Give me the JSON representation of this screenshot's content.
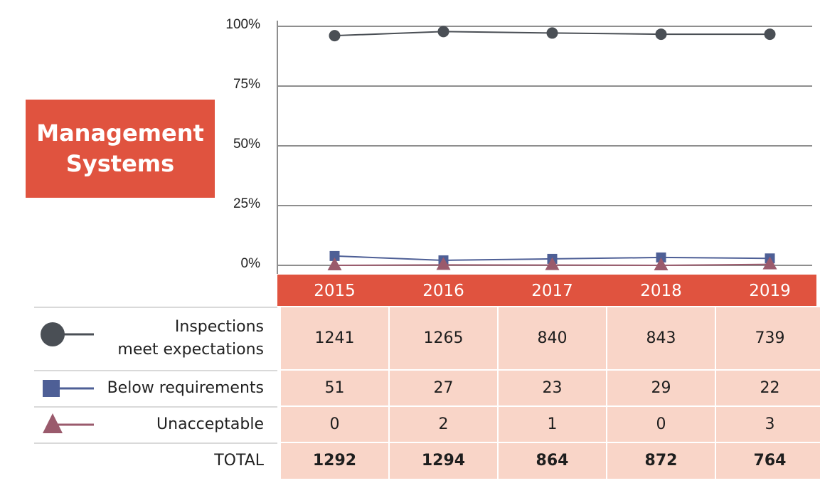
{
  "title": "Management Systems",
  "chart_data": {
    "type": "line",
    "categories": [
      "2015",
      "2016",
      "2017",
      "2018",
      "2019"
    ],
    "yticks": [
      "100%",
      "75%",
      "50%",
      "25%",
      "0%"
    ],
    "ylim": [
      0,
      100
    ],
    "grid": true,
    "series": [
      {
        "name": "Inspections meet expectations",
        "marker": "circle",
        "color": "#4a4f55",
        "values": [
          96.1,
          97.8,
          97.2,
          96.7,
          96.7
        ]
      },
      {
        "name": "Below requirements",
        "marker": "square",
        "color": "#4e5f96",
        "values": [
          3.9,
          2.1,
          2.7,
          3.3,
          2.9
        ]
      },
      {
        "name": "Unacceptable",
        "marker": "triangle",
        "color": "#9a5a6c",
        "values": [
          0.0,
          0.2,
          0.1,
          0.0,
          0.4
        ]
      }
    ]
  },
  "table": {
    "rows": [
      {
        "label_line1": "Inspections",
        "label_line2": "meet expectations",
        "values": [
          "1241",
          "1265",
          "840",
          "843",
          "739"
        ]
      },
      {
        "label": "Below requirements",
        "values": [
          "51",
          "27",
          "23",
          "29",
          "22"
        ]
      },
      {
        "label": "Unacceptable",
        "values": [
          "0",
          "2",
          "1",
          "0",
          "3"
        ]
      },
      {
        "label": "TOTAL",
        "values": [
          "1292",
          "1294",
          "864",
          "872",
          "764"
        ]
      }
    ]
  },
  "colors": {
    "accent": "#e0533f",
    "cell_bg": "#f9d5c8"
  }
}
